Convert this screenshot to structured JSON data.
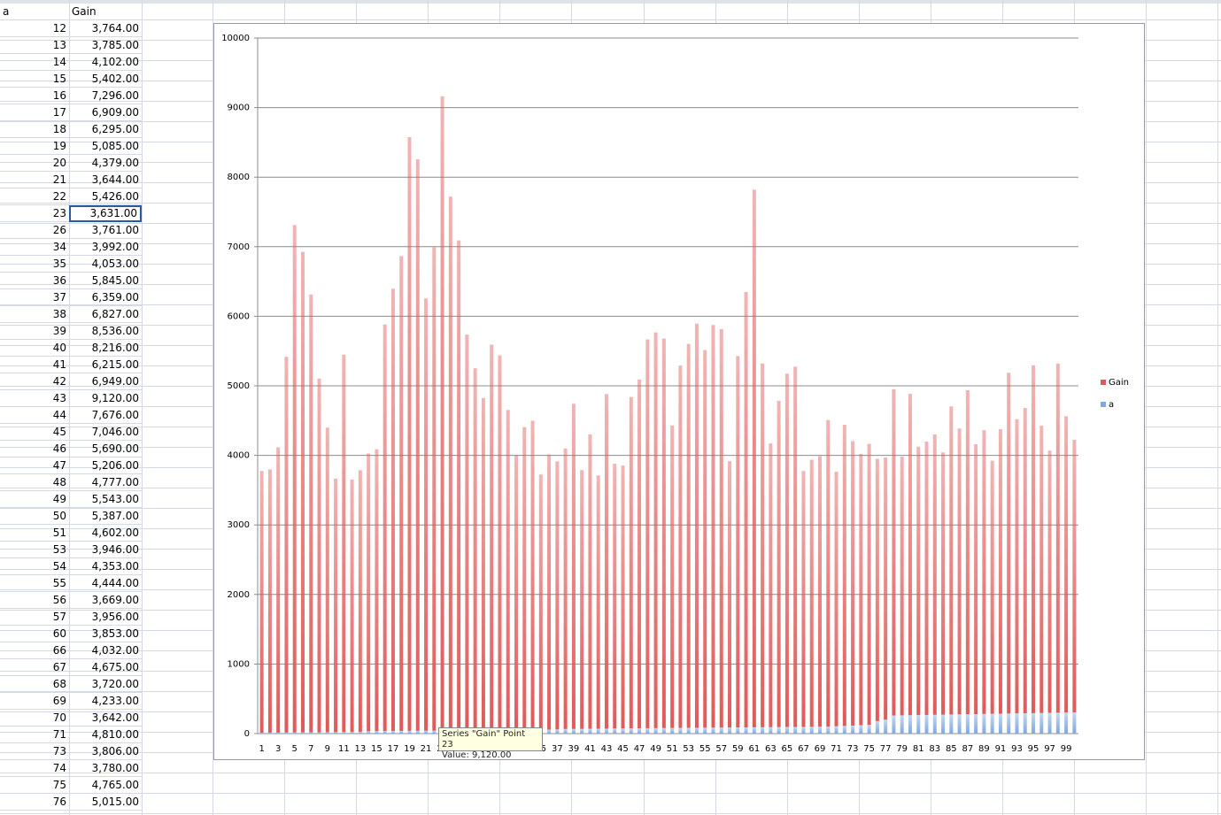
{
  "table": {
    "headers": [
      "a",
      "Gain"
    ],
    "rows": [
      [
        12,
        "3,764.00"
      ],
      [
        13,
        "3,785.00"
      ],
      [
        14,
        "4,102.00"
      ],
      [
        15,
        "5,402.00"
      ],
      [
        16,
        "7,296.00"
      ],
      [
        17,
        "6,909.00"
      ],
      [
        18,
        "6,295.00"
      ],
      [
        19,
        "5,085.00"
      ],
      [
        20,
        "4,379.00"
      ],
      [
        21,
        "3,644.00"
      ],
      [
        22,
        "5,426.00"
      ],
      [
        23,
        "3,631.00"
      ],
      [
        26,
        "3,761.00"
      ],
      [
        34,
        "3,992.00"
      ],
      [
        35,
        "4,053.00"
      ],
      [
        36,
        "5,845.00"
      ],
      [
        37,
        "6,359.00"
      ],
      [
        38,
        "6,827.00"
      ],
      [
        39,
        "8,536.00"
      ],
      [
        40,
        "8,216.00"
      ],
      [
        41,
        "6,215.00"
      ],
      [
        42,
        "6,949.00"
      ],
      [
        43,
        "9,120.00"
      ],
      [
        44,
        "7,676.00"
      ],
      [
        45,
        "7,046.00"
      ],
      [
        46,
        "5,690.00"
      ],
      [
        47,
        "5,206.00"
      ],
      [
        48,
        "4,777.00"
      ],
      [
        49,
        "5,543.00"
      ],
      [
        50,
        "5,387.00"
      ],
      [
        51,
        "4,602.00"
      ],
      [
        53,
        "3,946.00"
      ],
      [
        54,
        "4,353.00"
      ],
      [
        55,
        "4,444.00"
      ],
      [
        56,
        "3,669.00"
      ],
      [
        57,
        "3,956.00"
      ],
      [
        60,
        "3,853.00"
      ],
      [
        66,
        "4,032.00"
      ],
      [
        67,
        "4,675.00"
      ],
      [
        68,
        "3,720.00"
      ],
      [
        69,
        "4,233.00"
      ],
      [
        70,
        "3,642.00"
      ],
      [
        71,
        "4,810.00"
      ],
      [
        73,
        "3,806.00"
      ],
      [
        74,
        "3,780.00"
      ],
      [
        75,
        "4,765.00"
      ],
      [
        76,
        "5,015.00"
      ]
    ]
  },
  "tooltip": {
    "line1": "Series \"Gain\" Point 23",
    "line2": "Value: 9,120.00"
  },
  "chart_data": {
    "type": "stacked-bar",
    "categories": [
      1,
      null,
      3,
      null,
      5,
      null,
      7,
      null,
      9,
      null,
      11,
      null,
      13,
      null,
      15,
      null,
      17,
      null,
      19,
      null,
      21,
      null,
      23,
      null,
      25,
      null,
      27,
      null,
      29,
      null,
      31,
      null,
      33,
      null,
      35,
      null,
      37,
      null,
      39,
      null,
      41,
      null,
      43,
      null,
      45,
      null,
      47,
      null,
      49,
      null,
      51,
      null,
      53,
      null,
      55,
      null,
      57,
      null,
      59,
      null,
      61,
      null,
      63,
      null,
      65,
      null,
      67,
      null,
      69,
      null,
      71,
      null,
      73,
      null,
      75,
      null,
      77,
      null,
      79,
      null,
      81,
      null,
      83,
      null,
      85,
      null,
      87,
      null,
      89,
      null,
      91,
      null,
      93,
      null,
      95,
      null,
      97,
      null,
      99,
      null
    ],
    "series": [
      {
        "name": "Gain",
        "color": "#e05a5a",
        "values": [
          3764,
          3785,
          4102,
          5402,
          7296,
          6909,
          6295,
          5085,
          4379,
          3644,
          5426,
          3631,
          3761,
          3992,
          4053,
          5845,
          6359,
          6827,
          8536,
          8216,
          6215,
          6949,
          9120,
          7676,
          7046,
          5690,
          5206,
          4777,
          5543,
          5387,
          4602,
          3946,
          4353,
          4444,
          3669,
          3956,
          3853,
          4032,
          4675,
          3720,
          4233,
          3642,
          4810,
          3806,
          3780,
          4765,
          5015,
          5590,
          5690,
          5600,
          4350,
          5210,
          5520,
          5810,
          5430,
          5790,
          5730,
          3830,
          5340,
          6260,
          7730,
          5230,
          4080,
          4690,
          5080,
          5180,
          3680,
          3840,
          3890,
          4410,
          3660,
          4330,
          4090,
          3900,
          4040,
          3770,
          3770,
          4690,
          3720,
          4620,
          3860,
          3930,
          4030,
          3770,
          4430,
          4110,
          4660,
          3880,
          4080,
          3640,
          4090,
          4900,
          4230,
          4390,
          5000,
          4130,
          3770,
          5020,
          4260,
          3920
        ]
      },
      {
        "name": "a",
        "color": "#7ea8e0",
        "values": [
          12,
          13,
          14,
          15,
          16,
          17,
          18,
          19,
          20,
          21,
          22,
          23,
          26,
          34,
          35,
          36,
          37,
          38,
          39,
          40,
          41,
          42,
          43,
          44,
          45,
          46,
          47,
          48,
          49,
          50,
          51,
          53,
          54,
          55,
          56,
          57,
          60,
          66,
          67,
          68,
          69,
          70,
          71,
          73,
          74,
          75,
          76,
          77,
          78,
          79,
          80,
          81,
          82,
          83,
          84,
          85,
          86,
          87,
          88,
          89,
          90,
          91,
          92,
          93,
          94,
          95,
          96,
          97,
          98,
          99,
          105,
          110,
          115,
          120,
          125,
          180,
          200,
          260,
          262,
          264,
          266,
          268,
          270,
          272,
          274,
          276,
          278,
          280,
          282,
          284,
          286,
          288,
          290,
          292,
          294,
          296,
          298,
          300,
          302,
          304
        ]
      }
    ],
    "ylim": [
      0,
      10000
    ],
    "yticks": [
      0,
      1000,
      2000,
      3000,
      4000,
      5000,
      6000,
      7000,
      8000,
      9000,
      10000
    ],
    "grid": true,
    "legend": "right"
  }
}
